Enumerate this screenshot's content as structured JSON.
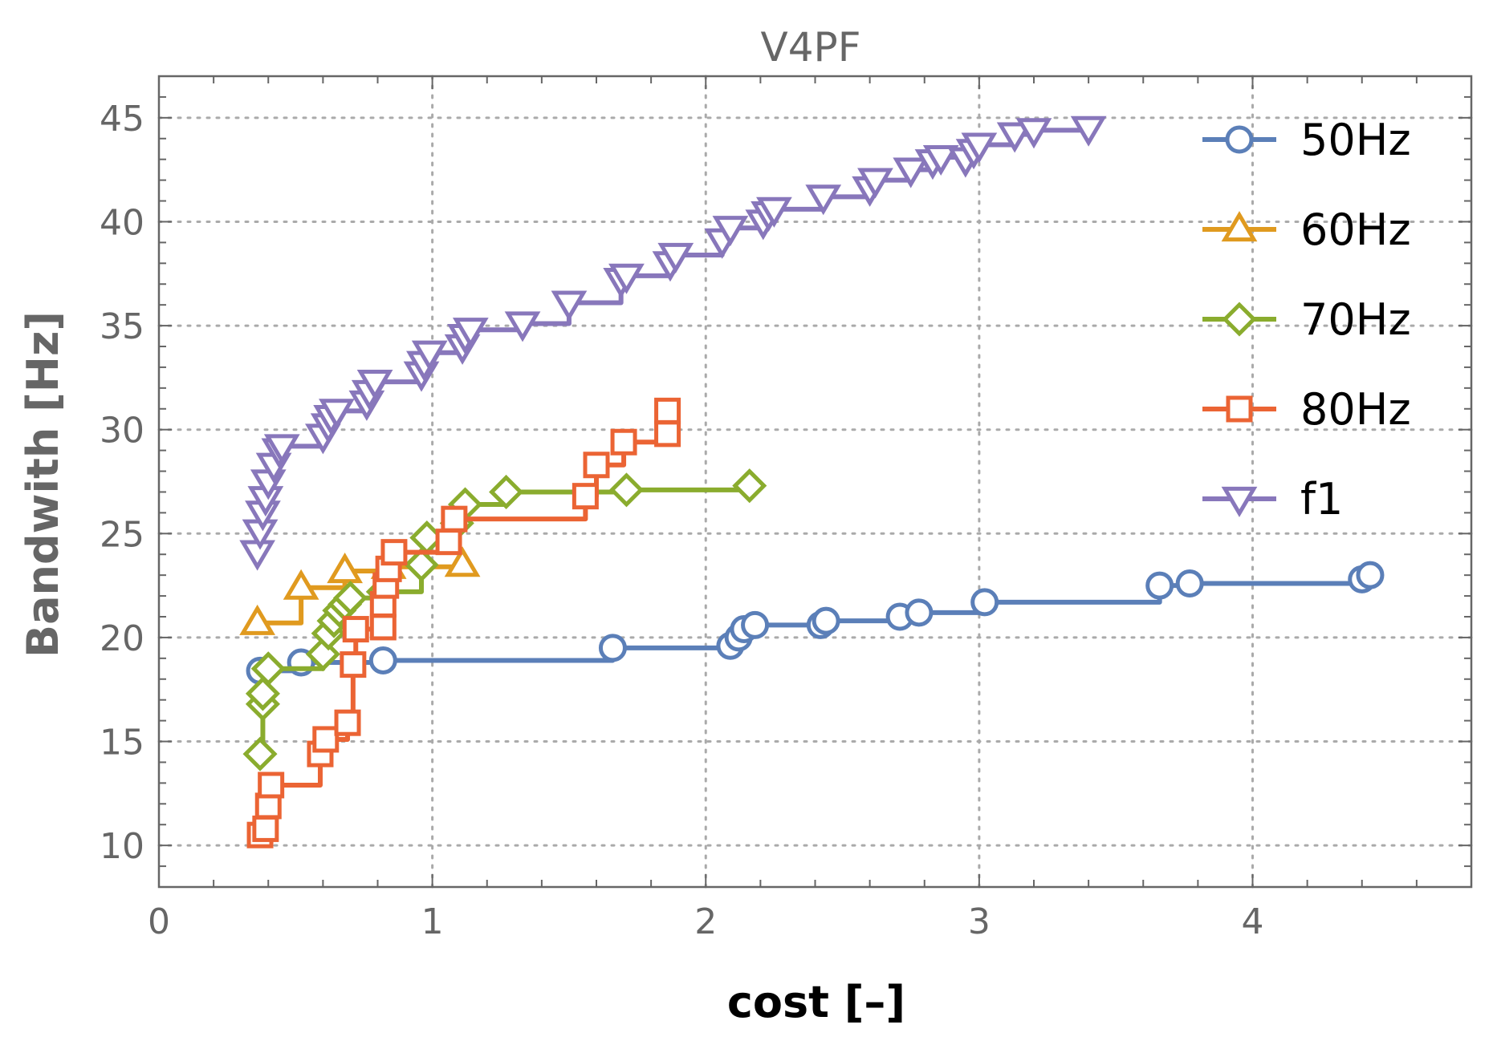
{
  "chart_data": {
    "type": "line",
    "title": "V4PF",
    "xlabel": "cost [–]",
    "ylabel": "Bandwith [Hz]",
    "xlim": [
      0,
      4.8
    ],
    "ylim": [
      8,
      47
    ],
    "xticks": [
      0,
      1,
      2,
      3,
      4
    ],
    "yticks": [
      10,
      15,
      20,
      25,
      30,
      35,
      40,
      45
    ],
    "grid": true,
    "legend_position": "top-right",
    "series": [
      {
        "name": "50Hz",
        "color": "#5b7fb8",
        "marker": "circle",
        "points": [
          [
            0.37,
            18.4
          ],
          [
            0.52,
            18.8
          ],
          [
            0.82,
            18.9
          ],
          [
            1.66,
            19.5
          ],
          [
            2.09,
            19.6
          ],
          [
            2.12,
            20.0
          ],
          [
            2.14,
            20.4
          ],
          [
            2.18,
            20.6
          ],
          [
            2.42,
            20.6
          ],
          [
            2.44,
            20.8
          ],
          [
            2.71,
            21.0
          ],
          [
            2.78,
            21.2
          ],
          [
            3.02,
            21.7
          ],
          [
            3.66,
            22.5
          ],
          [
            3.77,
            22.6
          ],
          [
            4.4,
            22.8
          ],
          [
            4.43,
            23.0
          ]
        ]
      },
      {
        "name": "60Hz",
        "color": "#e09a1f",
        "marker": "triangle-up",
        "points": [
          [
            0.36,
            20.7
          ],
          [
            0.52,
            22.4
          ],
          [
            0.68,
            23.2
          ],
          [
            0.84,
            23.4
          ],
          [
            1.11,
            23.5
          ]
        ]
      },
      {
        "name": "70Hz",
        "color": "#8aac2e",
        "marker": "diamond",
        "points": [
          [
            0.37,
            14.4
          ],
          [
            0.38,
            16.8
          ],
          [
            0.38,
            17.3
          ],
          [
            0.4,
            18.5
          ],
          [
            0.6,
            19.2
          ],
          [
            0.62,
            20.2
          ],
          [
            0.64,
            20.8
          ],
          [
            0.66,
            21.3
          ],
          [
            0.68,
            21.6
          ],
          [
            0.7,
            21.9
          ],
          [
            0.82,
            22.2
          ],
          [
            0.96,
            23.5
          ],
          [
            0.98,
            24.8
          ],
          [
            1.09,
            25.5
          ],
          [
            1.12,
            26.4
          ],
          [
            1.27,
            27.0
          ],
          [
            1.71,
            27.1
          ],
          [
            2.16,
            27.3
          ]
        ]
      },
      {
        "name": "80Hz",
        "color": "#eb6434",
        "marker": "square",
        "points": [
          [
            0.37,
            10.5
          ],
          [
            0.39,
            10.8
          ],
          [
            0.4,
            11.9
          ],
          [
            0.41,
            12.9
          ],
          [
            0.59,
            14.4
          ],
          [
            0.61,
            15.1
          ],
          [
            0.69,
            15.9
          ],
          [
            0.71,
            18.7
          ],
          [
            0.72,
            20.4
          ],
          [
            0.82,
            20.5
          ],
          [
            0.82,
            21.6
          ],
          [
            0.83,
            22.5
          ],
          [
            0.84,
            23.3
          ],
          [
            0.86,
            24.1
          ],
          [
            1.06,
            24.6
          ],
          [
            1.08,
            25.7
          ],
          [
            1.56,
            26.8
          ],
          [
            1.6,
            28.3
          ],
          [
            1.7,
            29.4
          ],
          [
            1.86,
            29.8
          ],
          [
            1.86,
            30.9
          ]
        ]
      },
      {
        "name": "f1",
        "color": "#8877bb",
        "marker": "triangle-down",
        "points": [
          [
            0.36,
            24.1
          ],
          [
            0.37,
            25.1
          ],
          [
            0.38,
            26.0
          ],
          [
            0.39,
            26.7
          ],
          [
            0.4,
            27.5
          ],
          [
            0.42,
            28.3
          ],
          [
            0.44,
            29.0
          ],
          [
            0.45,
            29.2
          ],
          [
            0.6,
            29.7
          ],
          [
            0.62,
            30.2
          ],
          [
            0.63,
            30.6
          ],
          [
            0.65,
            30.9
          ],
          [
            0.76,
            31.3
          ],
          [
            0.77,
            31.8
          ],
          [
            0.79,
            32.3
          ],
          [
            0.96,
            32.7
          ],
          [
            0.97,
            33.2
          ],
          [
            0.99,
            33.7
          ],
          [
            1.11,
            34.0
          ],
          [
            1.12,
            34.5
          ],
          [
            1.14,
            34.8
          ],
          [
            1.33,
            35.1
          ],
          [
            1.5,
            36.1
          ],
          [
            1.69,
            37.2
          ],
          [
            1.71,
            37.4
          ],
          [
            1.87,
            38.0
          ],
          [
            1.89,
            38.4
          ],
          [
            2.06,
            39.1
          ],
          [
            2.09,
            39.7
          ],
          [
            2.21,
            40.0
          ],
          [
            2.23,
            40.4
          ],
          [
            2.25,
            40.6
          ],
          [
            2.43,
            41.2
          ],
          [
            2.6,
            41.6
          ],
          [
            2.62,
            42.0
          ],
          [
            2.75,
            42.5
          ],
          [
            2.83,
            42.9
          ],
          [
            2.86,
            43.1
          ],
          [
            2.95,
            43.0
          ],
          [
            2.98,
            43.4
          ],
          [
            3.0,
            43.7
          ],
          [
            3.13,
            44.2
          ],
          [
            3.2,
            44.4
          ],
          [
            3.4,
            44.5
          ]
        ]
      }
    ]
  }
}
